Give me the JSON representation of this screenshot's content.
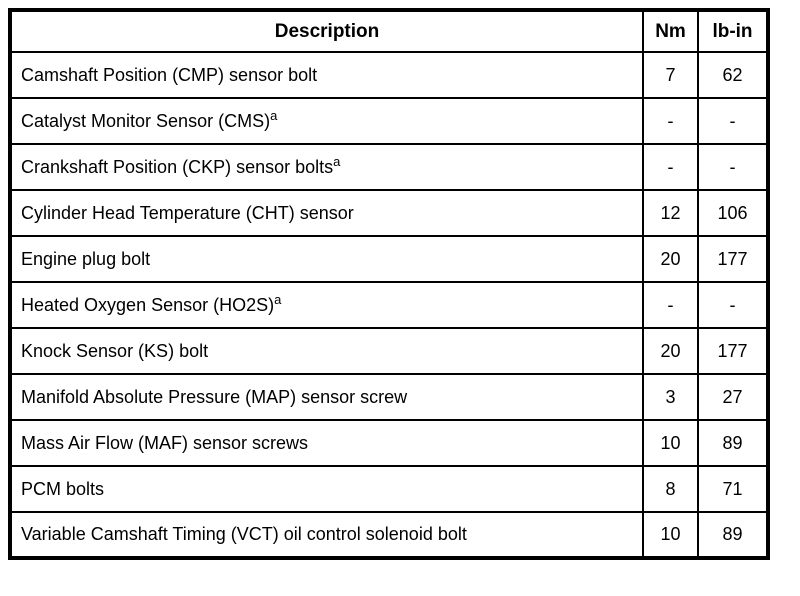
{
  "colors": {
    "background": "#ffffff",
    "border": "#000000",
    "text": "#000000"
  },
  "table": {
    "headers": [
      {
        "label": "Description"
      },
      {
        "label": "Nm"
      },
      {
        "label": "lb-in"
      }
    ],
    "rows": [
      {
        "description": "Camshaft Position (CMP) sensor bolt",
        "sup": "",
        "nm": "7",
        "lb_in": "62"
      },
      {
        "description": "Catalyst Monitor Sensor (CMS)",
        "sup": "a",
        "nm": "-",
        "lb_in": "-"
      },
      {
        "description": "Crankshaft Position (CKP) sensor bolts",
        "sup": "a",
        "nm": "-",
        "lb_in": "-"
      },
      {
        "description": "Cylinder Head Temperature (CHT) sensor",
        "sup": "",
        "nm": "12",
        "lb_in": "106"
      },
      {
        "description": "Engine plug bolt",
        "sup": "",
        "nm": "20",
        "lb_in": "177"
      },
      {
        "description": "Heated Oxygen Sensor (HO2S)",
        "sup": "a",
        "nm": "-",
        "lb_in": "-"
      },
      {
        "description": "Knock Sensor (KS) bolt",
        "sup": "",
        "nm": "20",
        "lb_in": "177"
      },
      {
        "description": "Manifold Absolute Pressure (MAP) sensor screw",
        "sup": "",
        "nm": "3",
        "lb_in": "27"
      },
      {
        "description": "Mass Air Flow (MAF) sensor screws",
        "sup": "",
        "nm": "10",
        "lb_in": "89"
      },
      {
        "description": "PCM bolts",
        "sup": "",
        "nm": "8",
        "lb_in": "71"
      },
      {
        "description": "Variable Camshaft Timing (VCT) oil control solenoid bolt",
        "sup": "",
        "nm": "10",
        "lb_in": "89"
      }
    ]
  }
}
